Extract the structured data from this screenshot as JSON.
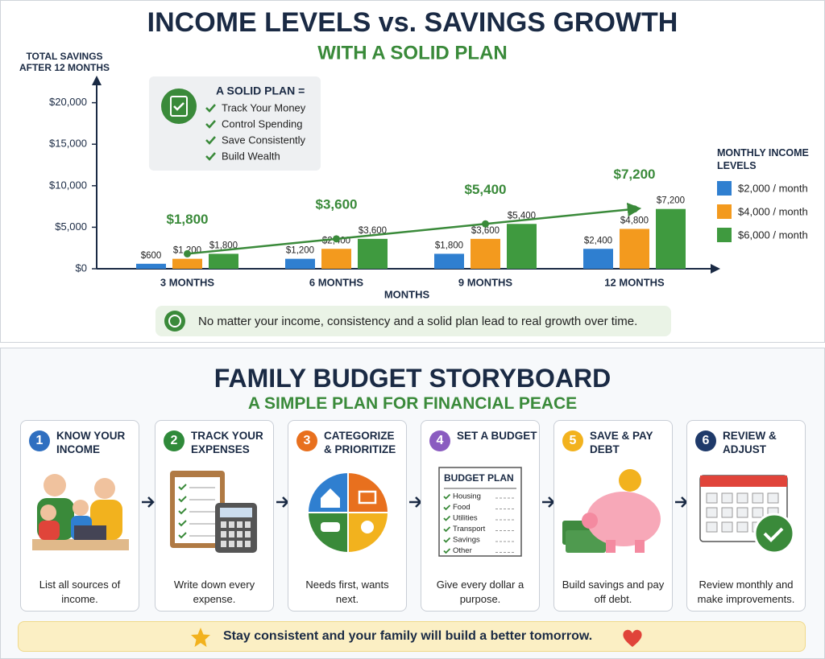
{
  "chart_data": {
    "type": "bar",
    "title": "INCOME LEVELS vs. SAVINGS GROWTH",
    "subtitle": "WITH A SOLID PLAN",
    "y_label": "TOTAL SAVINGS AFTER 12 MONTHS",
    "x_label": "MONTHS",
    "legend_title": "MONTHLY INCOME LEVELS",
    "categories": [
      "3 MONTHS",
      "6 MONTHS",
      "9 MONTHS",
      "12 MONTHS"
    ],
    "series": [
      {
        "name": "$2,000 / month",
        "color": "#2f7fd0",
        "values": [
          600,
          1200,
          1800,
          2400
        ],
        "value_labels": [
          "$600",
          "$1,200",
          "$1,800",
          "$2,400"
        ]
      },
      {
        "name": "$4,000 / month",
        "color": "#f39a1e",
        "values": [
          1200,
          2400,
          3600,
          4800
        ],
        "value_labels": [
          "$1,200",
          "$2,400",
          "$3,600",
          "$4,800"
        ]
      },
      {
        "name": "$6,000 / month",
        "color": "#3f9a3f",
        "values": [
          1800,
          3600,
          5400,
          7200
        ],
        "value_labels": [
          "$1,800",
          "$3,600",
          "$5,400",
          "$7,200"
        ]
      }
    ],
    "trend": {
      "color": "#3a8a3a",
      "values": [
        1800,
        3600,
        5400,
        7200
      ],
      "value_labels": [
        "$1,800",
        "$3,600",
        "$5,400",
        "$7,200"
      ]
    },
    "ylim": [
      0,
      22000
    ],
    "yticks": [
      {
        "value": 0,
        "label": "$0"
      },
      {
        "value": 5000,
        "label": "$5,000"
      },
      {
        "value": 10000,
        "label": "$10,000"
      },
      {
        "value": 15000,
        "label": "$15,000"
      },
      {
        "value": 20000,
        "label": "$20,000"
      }
    ],
    "grid": false
  },
  "plan": {
    "title": "A SOLID PLAN =",
    "items": [
      "Track Your Money",
      "Control Spending",
      "Save Consistently",
      "Build Wealth"
    ]
  },
  "note": "No matter your income, consistency and a solid plan lead to real growth over time.",
  "storyboard": {
    "title": "FAMILY BUDGET STORYBOARD",
    "subtitle": "A SIMPLE PLAN FOR FINANCIAL PEACE",
    "steps": [
      {
        "number": 1,
        "title": "KNOW YOUR INCOME",
        "caption": "List all sources of income.",
        "color": "#2f6fc0"
      },
      {
        "number": 2,
        "title": "TRACK YOUR EXPENSES",
        "caption": "Write down every expense.",
        "color": "#2f8a3a"
      },
      {
        "number": 3,
        "title": "CATEGORIZE & PRIORITIZE",
        "caption": "Needs first, wants next.",
        "color": "#e8701e"
      },
      {
        "number": 4,
        "title": "SET A BUDGET",
        "caption": "Give every dollar a purpose.",
        "color": "#8a5cc0"
      },
      {
        "number": 5,
        "title": "SAVE & PAY DEBT",
        "caption": "Build savings and pay off debt.",
        "color": "#f2b21e"
      },
      {
        "number": 6,
        "title": "REVIEW & ADJUST",
        "caption": "Review monthly and make improvements.",
        "color": "#1f3a6a"
      }
    ],
    "budget_plan": {
      "title": "BUDGET PLAN",
      "items": [
        "Housing",
        "Food",
        "Utilities",
        "Transport",
        "Savings",
        "Other"
      ]
    },
    "footer": "Stay consistent and your family will build a better tomorrow."
  }
}
